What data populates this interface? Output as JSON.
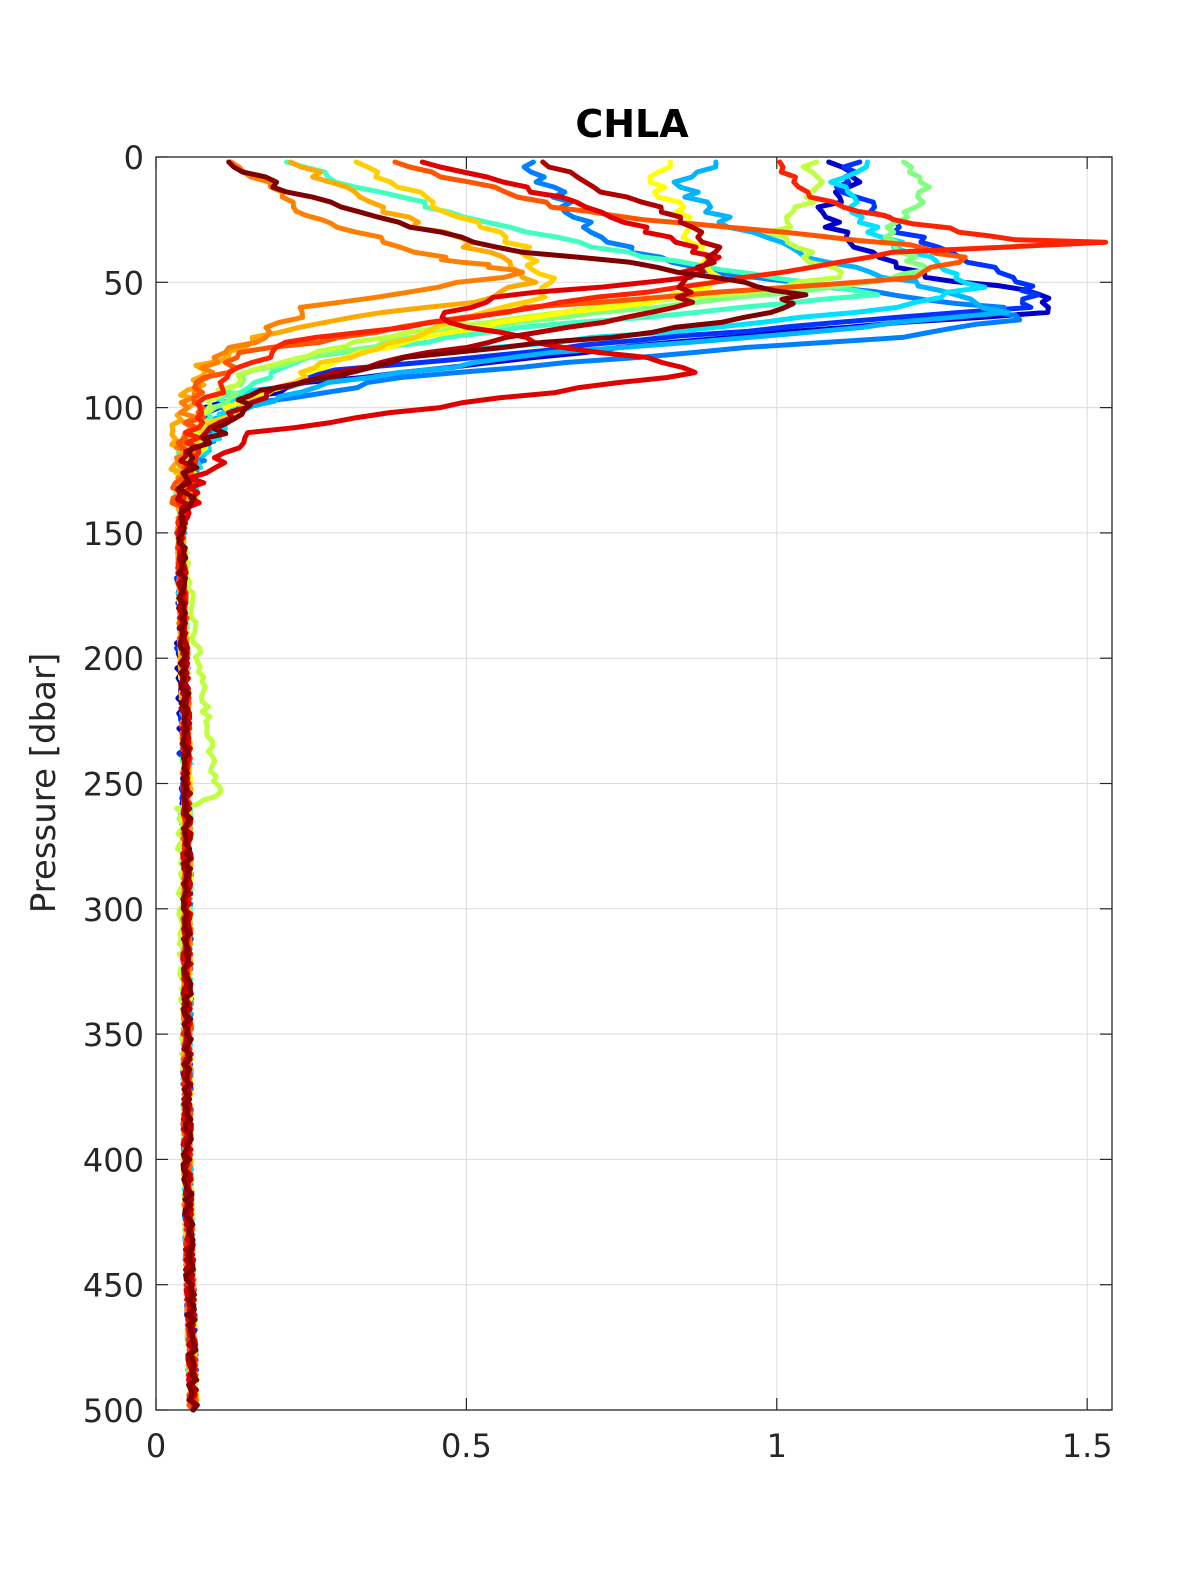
{
  "chart_data": {
    "type": "line",
    "title": "CHLA",
    "xlabel": "",
    "ylabel": "Pressure [dbar]",
    "xlim": [
      0,
      1.54
    ],
    "ylim": [
      0,
      500
    ],
    "y_reversed": true,
    "grid": true,
    "legend": "none",
    "xticks": [
      0,
      0.5,
      1,
      1.5
    ],
    "xtick_labels": [
      "0",
      "0.5",
      "1",
      "1.5"
    ],
    "yticks": [
      0,
      50,
      100,
      150,
      200,
      250,
      300,
      350,
      400,
      450,
      500
    ],
    "ytick_labels": [
      "0",
      "50",
      "100",
      "150",
      "200",
      "250",
      "300",
      "350",
      "400",
      "450",
      "500"
    ],
    "series": [
      {
        "color": "#0000c8",
        "x": [
          1.1,
          1.12,
          1.08,
          1.1,
          1.15,
          1.25,
          1.4,
          1.44,
          1.43,
          1.0,
          0.6,
          0.25,
          0.08,
          0.05,
          0.04,
          0.04,
          0.05,
          0.05,
          0.06
        ],
        "y": [
          2,
          10,
          20,
          30,
          40,
          48,
          53,
          58,
          62,
          70,
          80,
          90,
          100,
          120,
          150,
          200,
          300,
          400,
          500
        ]
      },
      {
        "color": "#0033ff",
        "x": [
          1.12,
          1.1,
          1.15,
          1.2,
          1.3,
          1.38,
          1.42,
          1.4,
          1.1,
          0.7,
          0.3,
          0.09,
          0.05,
          0.04,
          0.04,
          0.05,
          0.05,
          0.06
        ],
        "y": [
          2,
          10,
          20,
          30,
          40,
          48,
          55,
          60,
          66,
          75,
          85,
          100,
          120,
          150,
          200,
          300,
          400,
          500
        ]
      },
      {
        "color": "#0080ff",
        "x": [
          0.6,
          0.63,
          0.66,
          0.7,
          0.8,
          0.95,
          1.1,
          1.25,
          1.35,
          1.38,
          1.2,
          0.85,
          0.4,
          0.12,
          0.05,
          0.04,
          0.05,
          0.05,
          0.06
        ],
        "y": [
          2,
          10,
          20,
          30,
          40,
          48,
          52,
          57,
          60,
          65,
          72,
          78,
          88,
          100,
          125,
          150,
          250,
          400,
          500
        ]
      },
      {
        "color": "#00b4ff",
        "x": [
          0.9,
          0.85,
          0.88,
          0.95,
          1.05,
          1.18,
          1.3,
          1.36,
          1.05,
          0.65,
          0.28,
          0.1,
          0.05,
          0.04,
          0.05,
          0.05,
          0.06
        ],
        "y": [
          2,
          10,
          20,
          30,
          40,
          48,
          55,
          62,
          70,
          78,
          90,
          105,
          125,
          150,
          250,
          400,
          500
        ]
      },
      {
        "color": "#00e0ff",
        "x": [
          1.15,
          1.1,
          1.12,
          1.16,
          1.22,
          1.28,
          1.32,
          1.2,
          0.9,
          0.45,
          0.14,
          0.06,
          0.04,
          0.05,
          0.05,
          0.06
        ],
        "y": [
          2,
          10,
          20,
          30,
          38,
          45,
          52,
          60,
          68,
          78,
          95,
          120,
          150,
          250,
          400,
          500
        ]
      },
      {
        "color": "#40ffbf",
        "x": [
          0.22,
          0.3,
          0.45,
          0.6,
          0.75,
          0.9,
          1.05,
          1.15,
          0.95,
          0.6,
          0.25,
          0.08,
          0.05,
          0.04,
          0.05,
          0.05,
          0.06
        ],
        "y": [
          2,
          10,
          20,
          30,
          38,
          45,
          50,
          55,
          60,
          68,
          80,
          100,
          120,
          150,
          250,
          400,
          500
        ]
      },
      {
        "color": "#80ff80",
        "x": [
          1.22,
          1.24,
          1.22,
          1.18,
          1.2,
          1.25,
          1.1,
          0.8,
          0.45,
          0.15,
          0.06,
          0.04,
          0.05,
          0.05,
          0.06
        ],
        "y": [
          2,
          10,
          20,
          30,
          38,
          45,
          52,
          60,
          70,
          85,
          110,
          150,
          250,
          400,
          500
        ]
      },
      {
        "color": "#c0ff40",
        "x": [
          1.05,
          1.08,
          1.04,
          1.0,
          1.05,
          1.1,
          0.95,
          0.7,
          0.4,
          0.15,
          0.06,
          0.04,
          0.1,
          0.04,
          0.05,
          0.06
        ],
        "y": [
          2,
          10,
          20,
          30,
          40,
          48,
          54,
          60,
          70,
          85,
          105,
          150,
          255,
          260,
          400,
          500
        ]
      },
      {
        "color": "#ffff00",
        "x": [
          0.82,
          0.8,
          0.84,
          0.86,
          0.88,
          0.9,
          0.8,
          0.55,
          0.3,
          0.12,
          0.06,
          0.04,
          0.05,
          0.05,
          0.06
        ],
        "y": [
          2,
          10,
          20,
          30,
          40,
          50,
          58,
          66,
          80,
          100,
          120,
          150,
          250,
          400,
          500
        ]
      },
      {
        "color": "#ffd000",
        "x": [
          0.32,
          0.38,
          0.45,
          0.55,
          0.6,
          0.62,
          0.65,
          0.62,
          0.5,
          0.3,
          0.12,
          0.05,
          0.04,
          0.05,
          0.05,
          0.06
        ],
        "y": [
          2,
          10,
          20,
          30,
          38,
          45,
          50,
          56,
          65,
          80,
          100,
          120,
          150,
          250,
          400,
          500
        ]
      },
      {
        "color": "#ffaa00",
        "x": [
          0.22,
          0.28,
          0.35,
          0.45,
          0.55,
          0.6,
          0.5,
          0.3,
          0.15,
          0.07,
          0.04,
          0.04,
          0.05,
          0.05,
          0.06
        ],
        "y": [
          2,
          10,
          20,
          30,
          40,
          50,
          58,
          64,
          72,
          85,
          105,
          150,
          250,
          400,
          500
        ]
      },
      {
        "color": "#ff8000",
        "x": [
          0.13,
          0.18,
          0.22,
          0.25,
          0.3,
          0.35,
          0.4,
          0.45,
          0.5,
          0.55,
          0.6,
          0.25,
          0.1,
          0.05,
          0.04,
          0.05,
          0.05,
          0.06
        ],
        "y": [
          2,
          10,
          20,
          25,
          28,
          32,
          36,
          40,
          42,
          44,
          46,
          60,
          80,
          100,
          150,
          250,
          400,
          500
        ]
      },
      {
        "color": "#ff5500",
        "x": [
          0.4,
          0.5,
          0.65,
          0.8,
          1.0,
          1.2,
          1.3,
          1.22,
          0.6,
          0.3,
          0.15,
          0.08,
          0.05,
          0.04,
          0.05,
          0.05,
          0.06
        ],
        "y": [
          2,
          10,
          20,
          25,
          30,
          35,
          40,
          48,
          60,
          72,
          78,
          90,
          110,
          150,
          250,
          400,
          500
        ]
      },
      {
        "color": "#ff2200",
        "x": [
          0.99,
          1.02,
          1.1,
          1.2,
          1.3,
          1.38,
          1.54,
          1.2,
          0.9,
          0.55,
          0.22,
          0.1,
          0.06,
          0.04,
          0.05,
          0.05,
          0.06
        ],
        "y": [
          2,
          10,
          20,
          25,
          30,
          33,
          34,
          38,
          50,
          62,
          74,
          90,
          110,
          150,
          250,
          400,
          500
        ]
      },
      {
        "color": "#e00000",
        "x": [
          0.42,
          0.55,
          0.7,
          0.8,
          0.9,
          0.85,
          0.7,
          0.55,
          0.45,
          0.55,
          0.65,
          0.8,
          0.87,
          0.45,
          0.15,
          0.06,
          0.04,
          0.05,
          0.05,
          0.06
        ],
        "y": [
          2,
          10,
          20,
          30,
          40,
          48,
          52,
          56,
          64,
          70,
          76,
          80,
          86,
          100,
          110,
          130,
          150,
          250,
          400,
          500
        ]
      },
      {
        "color": "#b00000",
        "x": [
          0.62,
          0.68,
          0.8,
          0.88,
          0.9,
          0.86,
          0.85,
          0.8,
          0.62,
          0.4,
          0.2,
          0.08,
          0.05,
          0.04,
          0.05,
          0.05,
          0.06
        ],
        "y": [
          2,
          10,
          20,
          30,
          40,
          50,
          58,
          62,
          70,
          80,
          92,
          110,
          125,
          150,
          250,
          400,
          500
        ]
      },
      {
        "color": "#800000",
        "x": [
          0.12,
          0.18,
          0.3,
          0.45,
          0.6,
          0.75,
          0.85,
          0.95,
          1.03,
          1.0,
          0.8,
          0.4,
          0.15,
          0.06,
          0.04,
          0.05,
          0.05,
          0.06
        ],
        "y": [
          2,
          10,
          20,
          30,
          38,
          42,
          46,
          50,
          55,
          62,
          70,
          80,
          95,
          120,
          150,
          250,
          400,
          500
        ]
      }
    ]
  }
}
